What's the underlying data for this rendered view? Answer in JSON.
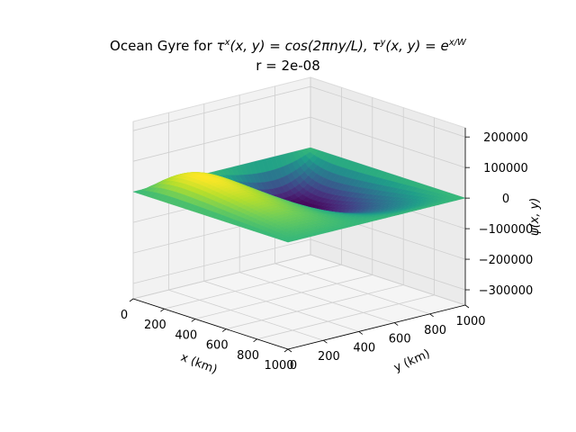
{
  "chart_data": {
    "type": "surface3d",
    "title": "Ocean Gyre for τˣ(x, y) = cos(2πny/L), τʸ(x, y) = e^{x/W}",
    "title_parts": {
      "prefix": "Ocean Gyre for ",
      "tx": "τ",
      "tx_sup": "x",
      "tx_args": "(x, y)",
      "tx_eq": " = ",
      "tx_expr": "cos(2πny/L), ",
      "ty": "τ",
      "ty_sup": "y",
      "ty_args": "(x, y)",
      "ty_eq": " = ",
      "ty_expr": "e",
      "ty_sup_expr": "x/W"
    },
    "subtitle": "r = 2e-08",
    "xlabel": "x (km)",
    "ylabel": "y (km)",
    "zlabel": "ψ(x, y)",
    "xlim": [
      0,
      1000
    ],
    "ylim": [
      0,
      1000
    ],
    "zlim": [
      -350000,
      230000
    ],
    "xticks": [
      0,
      200,
      400,
      600,
      800,
      1000
    ],
    "yticks": [
      0,
      200,
      400,
      600,
      800,
      1000
    ],
    "zticks": [
      -300000,
      -200000,
      -100000,
      0,
      100000,
      200000
    ],
    "xtick_labels": [
      "0",
      "200",
      "400",
      "600",
      "800",
      "1000"
    ],
    "ytick_labels": [
      "0",
      "200",
      "400",
      "600",
      "800",
      "1000"
    ],
    "ztick_labels": [
      "−300000",
      "−200000",
      "−100000",
      "0",
      "100000",
      "200000"
    ],
    "colormap": "viridis",
    "surface_peaks": {
      "max": {
        "x": 1000,
        "y": 0,
        "psi": 225000
      },
      "min": {
        "x": 0,
        "y": 1000,
        "psi": -330000
      },
      "boundary_psi": 0
    },
    "grid": true
  }
}
